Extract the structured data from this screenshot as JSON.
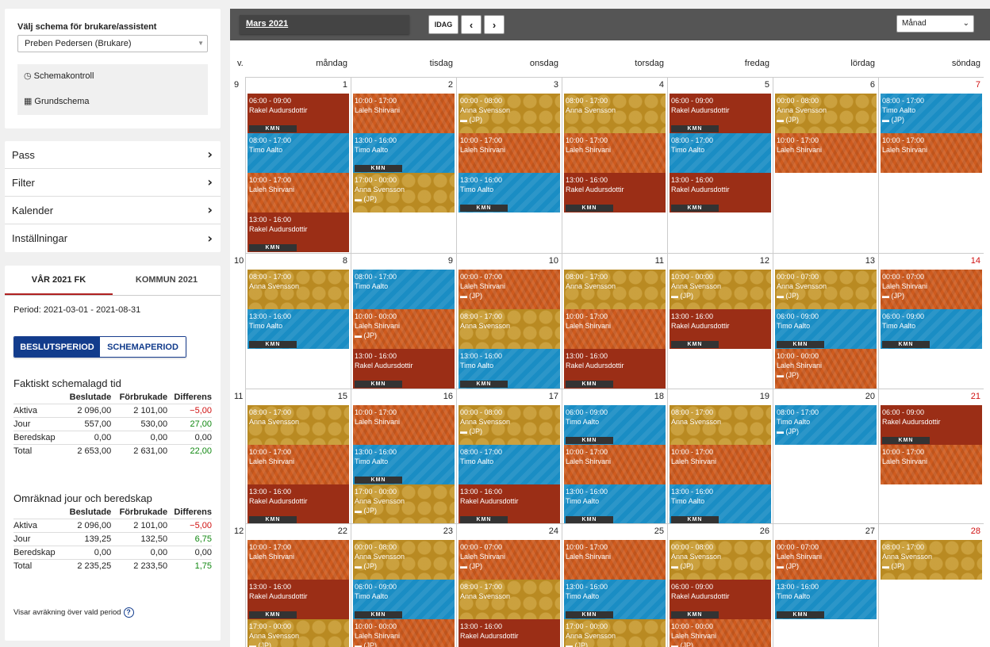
{
  "selector": {
    "title": "Välj schema för brukare/assistent",
    "value": "Preben Pedersen (Brukare)",
    "links": [
      {
        "label": "Schemakontroll",
        "icon": "clock-icon"
      },
      {
        "label": "Grundschema",
        "icon": "calendar-icon"
      }
    ]
  },
  "menu": [
    {
      "label": "Pass"
    },
    {
      "label": "Filter"
    },
    {
      "label": "Kalender"
    },
    {
      "label": "Inställningar"
    }
  ],
  "stats": {
    "tabs": [
      "VÅR 2021 FK",
      "KOMMUN 2021"
    ],
    "period": "Period: 2021-03-01 - 2021-08-31",
    "toggle": [
      "BESLUTSPERIOD",
      "SCHEMAPERIOD"
    ],
    "section1": {
      "title": "Faktiskt schemalagd tid",
      "headers": [
        "",
        "Beslutade",
        "Förbrukade",
        "Differens"
      ],
      "rows": [
        [
          "Aktiva",
          "2 096,00",
          "2 101,00",
          "−5,00"
        ],
        [
          "Jour",
          "557,00",
          "530,00",
          "27,00"
        ],
        [
          "Beredskap",
          "0,00",
          "0,00",
          "0,00"
        ],
        [
          "Total",
          "2 653,00",
          "2 631,00",
          "22,00"
        ]
      ]
    },
    "section2": {
      "title": "Omräknad jour och beredskap",
      "headers": [
        "",
        "Beslutade",
        "Förbrukade",
        "Differens"
      ],
      "rows": [
        [
          "Aktiva",
          "2 096,00",
          "2 101,00",
          "−5,00"
        ],
        [
          "Jour",
          "139,25",
          "132,50",
          "6,75"
        ],
        [
          "Beredskap",
          "0,00",
          "0,00",
          "0,00"
        ],
        [
          "Total",
          "2 235,25",
          "2 233,50",
          "1,75"
        ]
      ]
    },
    "note": "Visar avräkning över vald period",
    "colors": {
      "negative": "#d01010",
      "positive": "#118811",
      "accent": "#123c8c"
    }
  },
  "calendar": {
    "month": "Mars 2021",
    "today_label": "IDAG",
    "view": "Månad",
    "week_label": "v.",
    "days": [
      "måndag",
      "tisdag",
      "onsdag",
      "torsdag",
      "fredag",
      "lördag",
      "söndag"
    ],
    "colors": {
      "red": "#9b2e16",
      "blue": "#1a8dc4",
      "orange": "#cf5b1e",
      "gold": "#b98a22"
    },
    "weeks": [
      {
        "num": "9",
        "days": [
          {
            "d": "1",
            "ev": [
              {
                "t": "06:00 - 09:00",
                "n": "Rakel Audursdottir",
                "c": "red",
                "k": "KMN"
              },
              {
                "t": "08:00 - 17:00",
                "n": "Timo Aalto",
                "c": "blue"
              },
              {
                "t": "10:00 - 17:00",
                "n": "Laleh Shirvani",
                "c": "orange"
              },
              {
                "t": "13:00 - 16:00",
                "n": "Rakel Audursdottir",
                "c": "red",
                "k": "KMN"
              }
            ]
          },
          {
            "d": "2",
            "ev": [
              {
                "t": "10:00 - 17:00",
                "n": "Laleh Shirvani",
                "c": "orange"
              },
              {
                "t": "13:00 - 16:00",
                "n": "Timo Aalto",
                "c": "blue",
                "k": "KMN"
              },
              {
                "t": "17:00 - 00:00",
                "n": "Anna Svensson",
                "c": "gold",
                "j": "(JP)"
              }
            ]
          },
          {
            "d": "3",
            "ev": [
              {
                "t": "00:00 - 08:00",
                "n": "Anna Svensson",
                "c": "gold",
                "j": "(JP)"
              },
              {
                "t": "10:00 - 17:00",
                "n": "Laleh Shirvani",
                "c": "orange"
              },
              {
                "t": "13:00 - 16:00",
                "n": "Timo Aalto",
                "c": "blue",
                "k": "KMN"
              }
            ]
          },
          {
            "d": "4",
            "ev": [
              {
                "t": "08:00 - 17:00",
                "n": "Anna Svensson",
                "c": "gold"
              },
              {
                "t": "10:00 - 17:00",
                "n": "Laleh Shirvani",
                "c": "orange"
              },
              {
                "t": "13:00 - 16:00",
                "n": "Rakel Audursdottir",
                "c": "red",
                "k": "KMN"
              }
            ]
          },
          {
            "d": "5",
            "ev": [
              {
                "t": "06:00 - 09:00",
                "n": "Rakel Audursdottir",
                "c": "red",
                "k": "KMN"
              },
              {
                "t": "08:00 - 17:00",
                "n": "Timo Aalto",
                "c": "blue"
              },
              {
                "t": "13:00 - 16:00",
                "n": "Rakel Audursdottir",
                "c": "red",
                "k": "KMN"
              }
            ]
          },
          {
            "d": "6",
            "ev": [
              {
                "t": "00:00 - 08:00",
                "n": "Anna Svensson",
                "c": "gold",
                "j": "(JP)"
              },
              {
                "t": "10:00 - 17:00",
                "n": "Laleh Shirvani",
                "c": "orange"
              }
            ]
          },
          {
            "d": "7",
            "red": true,
            "ev": [
              {
                "t": "08:00 - 17:00",
                "n": "Timo Aalto",
                "c": "blue",
                "j": "(JP)"
              },
              {
                "t": "10:00 - 17:00",
                "n": "Laleh Shirvani",
                "c": "orange"
              }
            ]
          }
        ]
      },
      {
        "num": "10",
        "days": [
          {
            "d": "8",
            "ev": [
              {
                "t": "08:00 - 17:00",
                "n": "Anna Svensson",
                "c": "gold"
              },
              {
                "t": "13:00 - 16:00",
                "n": "Timo Aalto",
                "c": "blue",
                "k": "KMN"
              }
            ]
          },
          {
            "d": "9",
            "ev": [
              {
                "t": "08:00 - 17:00",
                "n": "Timo Aalto",
                "c": "blue"
              },
              {
                "t": "10:00 - 00:00",
                "n": "Laleh Shirvani",
                "c": "orange",
                "j": "(JP)"
              },
              {
                "t": "13:00 - 16:00",
                "n": "Rakel Audursdottir",
                "c": "red",
                "k": "KMN"
              }
            ]
          },
          {
            "d": "10",
            "ev": [
              {
                "t": "00:00 - 07:00",
                "n": "Laleh Shirvani",
                "c": "orange",
                "j": "(JP)"
              },
              {
                "t": "08:00 - 17:00",
                "n": "Anna Svensson",
                "c": "gold"
              },
              {
                "t": "13:00 - 16:00",
                "n": "Timo Aalto",
                "c": "blue",
                "k": "KMN"
              }
            ]
          },
          {
            "d": "11",
            "ev": [
              {
                "t": "08:00 - 17:00",
                "n": "Anna Svensson",
                "c": "gold"
              },
              {
                "t": "10:00 - 17:00",
                "n": "Laleh Shirvani",
                "c": "orange"
              },
              {
                "t": "13:00 - 16:00",
                "n": "Rakel Audursdottir",
                "c": "red",
                "k": "KMN"
              }
            ]
          },
          {
            "d": "12",
            "ev": [
              {
                "t": "10:00 - 00:00",
                "n": "Anna Svensson",
                "c": "gold",
                "j": "(JP)"
              },
              {
                "t": "13:00 - 16:00",
                "n": "Rakel Audursdottir",
                "c": "red",
                "k": "KMN"
              }
            ]
          },
          {
            "d": "13",
            "ev": [
              {
                "t": "00:00 - 07:00",
                "n": "Anna Svensson",
                "c": "gold",
                "j": "(JP)"
              },
              {
                "t": "06:00 - 09:00",
                "n": "Timo Aalto",
                "c": "blue",
                "k": "KMN"
              },
              {
                "t": "10:00 - 00:00",
                "n": "Laleh Shirvani",
                "c": "orange",
                "j": "(JP)"
              }
            ]
          },
          {
            "d": "14",
            "red": true,
            "ev": [
              {
                "t": "00:00 - 07:00",
                "n": "Laleh Shirvani",
                "c": "orange",
                "j": "(JP)"
              },
              {
                "t": "06:00 - 09:00",
                "n": "Timo Aalto",
                "c": "blue",
                "k": "KMN"
              }
            ]
          }
        ]
      },
      {
        "num": "11",
        "days": [
          {
            "d": "15",
            "ev": [
              {
                "t": "08:00 - 17:00",
                "n": "Anna Svensson",
                "c": "gold"
              },
              {
                "t": "10:00 - 17:00",
                "n": "Laleh Shirvani",
                "c": "orange"
              },
              {
                "t": "13:00 - 16:00",
                "n": "Rakel Audursdottir",
                "c": "red",
                "k": "KMN"
              }
            ]
          },
          {
            "d": "16",
            "ev": [
              {
                "t": "10:00 - 17:00",
                "n": "Laleh Shirvani",
                "c": "orange"
              },
              {
                "t": "13:00 - 16:00",
                "n": "Timo Aalto",
                "c": "blue",
                "k": "KMN"
              },
              {
                "t": "17:00 - 00:00",
                "n": "Anna Svensson",
                "c": "gold",
                "j": "(JP)"
              }
            ]
          },
          {
            "d": "17",
            "ev": [
              {
                "t": "00:00 - 08:00",
                "n": "Anna Svensson",
                "c": "gold",
                "j": "(JP)"
              },
              {
                "t": "08:00 - 17:00",
                "n": "Timo Aalto",
                "c": "blue"
              },
              {
                "t": "13:00 - 16:00",
                "n": "Rakel Audursdottir",
                "c": "red",
                "k": "KMN"
              }
            ]
          },
          {
            "d": "18",
            "ev": [
              {
                "t": "06:00 - 09:00",
                "n": "Timo Aalto",
                "c": "blue",
                "k": "KMN"
              },
              {
                "t": "10:00 - 17:00",
                "n": "Laleh Shirvani",
                "c": "orange"
              },
              {
                "t": "13:00 - 16:00",
                "n": "Timo Aalto",
                "c": "blue",
                "k": "KMN"
              }
            ]
          },
          {
            "d": "19",
            "ev": [
              {
                "t": "08:00 - 17:00",
                "n": "Anna Svensson",
                "c": "gold"
              },
              {
                "t": "10:00 - 17:00",
                "n": "Laleh Shirvani",
                "c": "orange"
              },
              {
                "t": "13:00 - 16:00",
                "n": "Timo Aalto",
                "c": "blue",
                "k": "KMN"
              }
            ]
          },
          {
            "d": "20",
            "ev": [
              {
                "t": "08:00 - 17:00",
                "n": "Timo Aalto",
                "c": "blue",
                "j": "(JP)"
              }
            ]
          },
          {
            "d": "21",
            "red": true,
            "ev": [
              {
                "t": "06:00 - 09:00",
                "n": "Rakel Audursdottir",
                "c": "red",
                "k": "KMN"
              },
              {
                "t": "10:00 - 17:00",
                "n": "Laleh Shirvani",
                "c": "orange"
              }
            ]
          }
        ]
      },
      {
        "num": "12",
        "days": [
          {
            "d": "22",
            "ev": [
              {
                "t": "10:00 - 17:00",
                "n": "Laleh Shirvani",
                "c": "orange"
              },
              {
                "t": "13:00 - 16:00",
                "n": "Rakel Audursdottir",
                "c": "red",
                "k": "KMN"
              },
              {
                "t": "17:00 - 00:00",
                "n": "Anna Svensson",
                "c": "gold",
                "j": "(JP)"
              }
            ]
          },
          {
            "d": "23",
            "ev": [
              {
                "t": "00:00 - 08:00",
                "n": "Anna Svensson",
                "c": "gold",
                "j": "(JP)"
              },
              {
                "t": "06:00 - 09:00",
                "n": "Timo Aalto",
                "c": "blue",
                "k": "KMN"
              },
              {
                "t": "10:00 - 00:00",
                "n": "Laleh Shirvani",
                "c": "orange",
                "j": "(JP)"
              }
            ]
          },
          {
            "d": "24",
            "ev": [
              {
                "t": "00:00 - 07:00",
                "n": "Laleh Shirvani",
                "c": "orange",
                "j": "(JP)"
              },
              {
                "t": "08:00 - 17:00",
                "n": "Anna Svensson",
                "c": "gold"
              },
              {
                "t": "13:00 - 16:00",
                "n": "Rakel Audursdottir",
                "c": "red"
              }
            ]
          },
          {
            "d": "25",
            "ev": [
              {
                "t": "10:00 - 17:00",
                "n": "Laleh Shirvani",
                "c": "orange"
              },
              {
                "t": "13:00 - 16:00",
                "n": "Timo Aalto",
                "c": "blue",
                "k": "KMN"
              },
              {
                "t": "17:00 - 00:00",
                "n": "Anna Svensson",
                "c": "gold",
                "j": "(JP)"
              }
            ]
          },
          {
            "d": "26",
            "ev": [
              {
                "t": "00:00 - 08:00",
                "n": "Anna Svensson",
                "c": "gold",
                "j": "(JP)"
              },
              {
                "t": "06:00 - 09:00",
                "n": "Rakel Audursdottir",
                "c": "red",
                "k": "KMN"
              },
              {
                "t": "10:00 - 00:00",
                "n": "Laleh Shirvani",
                "c": "orange",
                "j": "(JP)"
              }
            ]
          },
          {
            "d": "27",
            "ev": [
              {
                "t": "00:00 - 07:00",
                "n": "Laleh Shirvani",
                "c": "orange",
                "j": "(JP)"
              },
              {
                "t": "13:00 - 16:00",
                "n": "Timo Aalto",
                "c": "blue",
                "k": "KMN"
              }
            ]
          },
          {
            "d": "28",
            "red": true,
            "ev": [
              {
                "t": "08:00 - 17:00",
                "n": "Anna Svensson",
                "c": "gold",
                "j": "(JP)"
              }
            ]
          }
        ]
      }
    ]
  }
}
